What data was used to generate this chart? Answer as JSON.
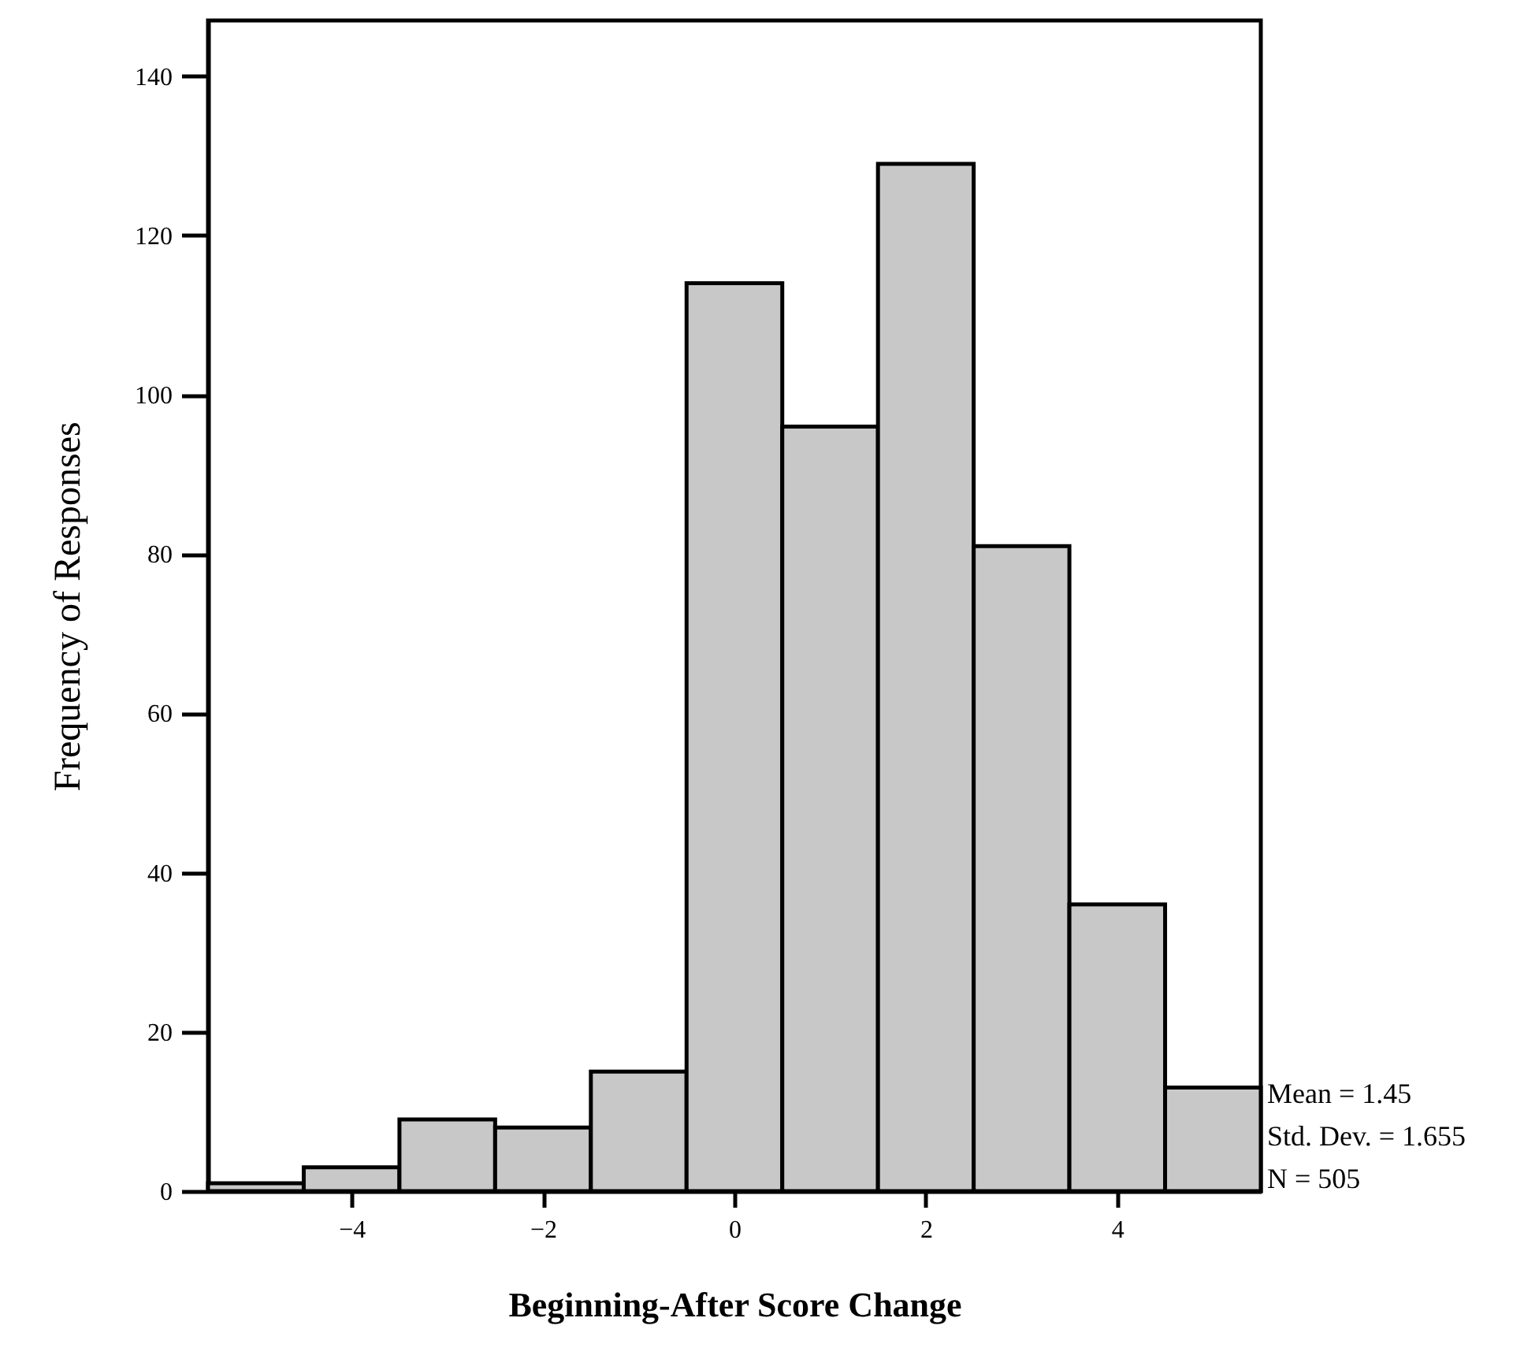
{
  "chart_data": {
    "type": "histogram",
    "xlabel": "Beginning-After Score Change",
    "ylabel": "Frequency of Responses",
    "bins": [
      -5.5,
      -4.5,
      -3.5,
      -2.5,
      -1.5,
      -0.5,
      0.5,
      1.5,
      2.5,
      3.5,
      4.5,
      5.5
    ],
    "values": [
      1,
      3,
      9,
      8,
      15,
      114,
      96,
      129,
      81,
      36,
      13
    ],
    "color": "#c8c8c8",
    "xlim": [
      -5.5,
      5.5
    ],
    "xticks": [
      -4,
      -2,
      0,
      2,
      4
    ],
    "ylim": [
      0,
      147
    ],
    "yticks": [
      0,
      20,
      40,
      60,
      80,
      100,
      120,
      140
    ],
    "grid": false,
    "annotations": [
      "Mean = 1.45",
      "Std. Dev. = 1.655",
      "N = 505"
    ]
  }
}
